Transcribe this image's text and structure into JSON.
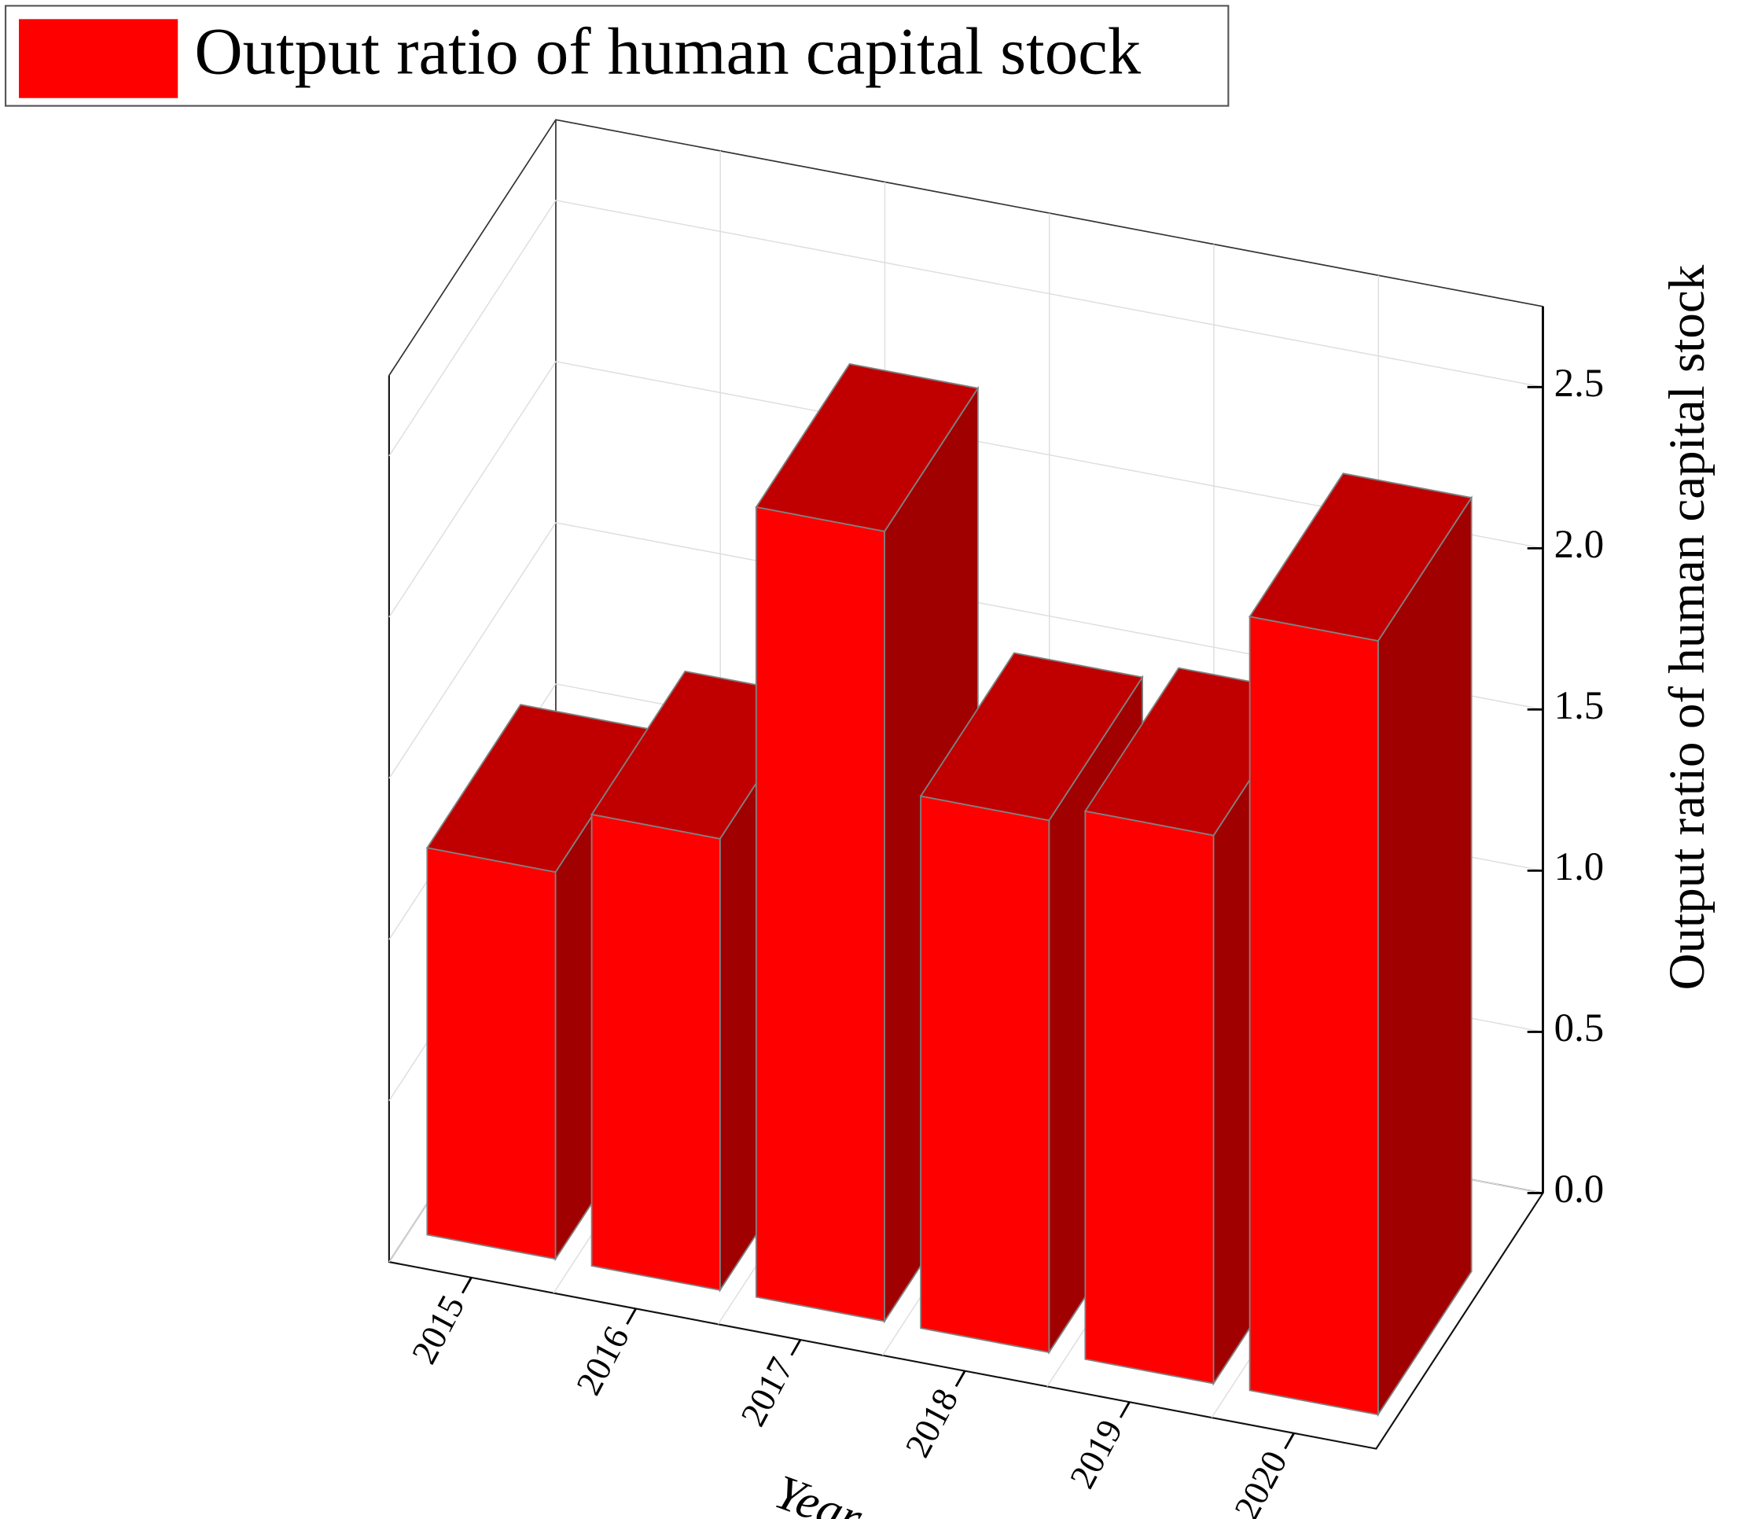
{
  "chart_data": {
    "type": "bar",
    "x_label": "Year",
    "y_label": "Output ratio of human capital stock",
    "categories": [
      "2015",
      "2016",
      "2017",
      "2018",
      "2019",
      "2020"
    ],
    "series": [
      {
        "name": "Output ratio of human capital stock",
        "color": "#ff0000",
        "values": [
          1.2,
          1.4,
          2.45,
          1.65,
          1.7,
          2.4
        ]
      }
    ],
    "ylim": [
      0,
      2.75
    ],
    "yticks": [
      {
        "value": 0,
        "label": "0.0"
      },
      0.5,
      {
        "value": 1,
        "label": "1.0"
      },
      1.5,
      {
        "value": 2,
        "label": "2.0"
      },
      2.5
    ],
    "grid": true,
    "legend": "top-left"
  }
}
